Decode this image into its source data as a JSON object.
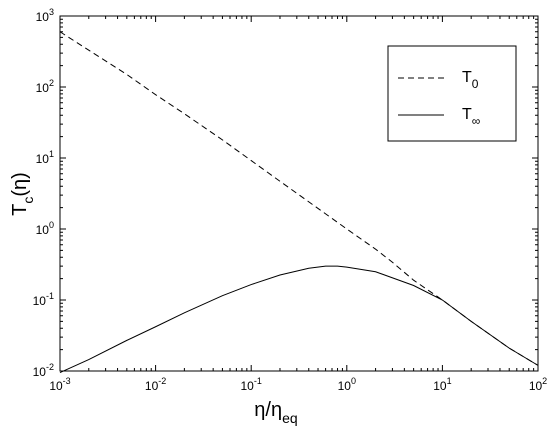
{
  "chart_data": {
    "type": "line",
    "xscale": "log",
    "yscale": "log",
    "xlim": [
      0.001,
      100
    ],
    "ylim": [
      0.01,
      1000
    ],
    "grid": false,
    "legend_position": "top-right",
    "xlabel": {
      "main": "η/η",
      "sub": "eq"
    },
    "ylabel": {
      "main": "T",
      "sub": "c",
      "tail": "(η)"
    },
    "x_ticks": [
      {
        "value": 0.001,
        "base": "10",
        "exp": "-3"
      },
      {
        "value": 0.01,
        "base": "10",
        "exp": "-2"
      },
      {
        "value": 0.1,
        "base": "10",
        "exp": "-1"
      },
      {
        "value": 1,
        "base": "10",
        "exp": "0"
      },
      {
        "value": 10,
        "base": "10",
        "exp": "1"
      },
      {
        "value": 100,
        "base": "10",
        "exp": "2"
      }
    ],
    "y_ticks": [
      {
        "value": 0.01,
        "base": "10",
        "exp": "-2"
      },
      {
        "value": 0.1,
        "base": "10",
        "exp": "-1"
      },
      {
        "value": 1,
        "base": "10",
        "exp": "0"
      },
      {
        "value": 10,
        "base": "10",
        "exp": "1"
      },
      {
        "value": 100,
        "base": "10",
        "exp": "2"
      },
      {
        "value": 1000,
        "base": "10",
        "exp": "3"
      }
    ],
    "series": [
      {
        "name": "T0",
        "label_main": "T",
        "label_sub": "0",
        "style": "dashed",
        "points": [
          [
            0.001,
            600
          ],
          [
            0.002,
            330
          ],
          [
            0.005,
            150
          ],
          [
            0.01,
            78
          ],
          [
            0.02,
            42
          ],
          [
            0.05,
            18
          ],
          [
            0.1,
            9.2
          ],
          [
            0.2,
            4.7
          ],
          [
            0.5,
            1.95
          ],
          [
            1,
            1.0
          ],
          [
            2,
            0.52
          ],
          [
            3,
            0.34
          ],
          [
            5,
            0.19
          ],
          [
            10,
            0.1
          ],
          [
            20,
            0.05
          ],
          [
            50,
            0.021
          ],
          [
            100,
            0.012
          ]
        ]
      },
      {
        "name": "T∞",
        "label_main": "T",
        "label_sub": "∞",
        "style": "solid",
        "points": [
          [
            0.001,
            0.0095
          ],
          [
            0.002,
            0.0145
          ],
          [
            0.005,
            0.027
          ],
          [
            0.01,
            0.042
          ],
          [
            0.02,
            0.066
          ],
          [
            0.05,
            0.115
          ],
          [
            0.1,
            0.165
          ],
          [
            0.2,
            0.225
          ],
          [
            0.4,
            0.28
          ],
          [
            0.6,
            0.3
          ],
          [
            0.8,
            0.3
          ],
          [
            1,
            0.29
          ],
          [
            2,
            0.25
          ],
          [
            5,
            0.16
          ],
          [
            10,
            0.1
          ],
          [
            20,
            0.05
          ],
          [
            50,
            0.021
          ],
          [
            100,
            0.012
          ]
        ]
      }
    ]
  }
}
